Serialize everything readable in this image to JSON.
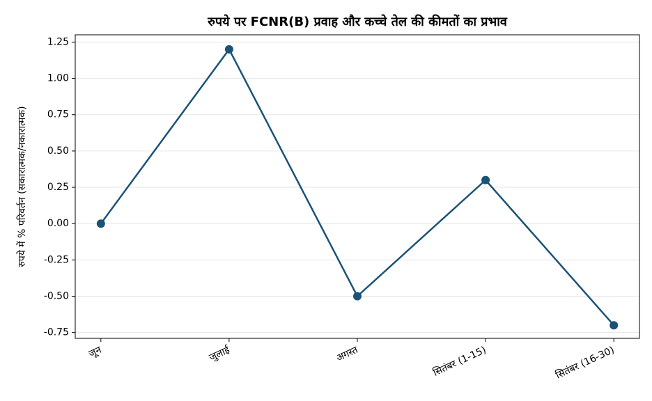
{
  "chart_data": {
    "type": "line",
    "title": "रुपये पर FCNR(B) प्रवाह और कच्चे तेल की कीमतों का प्रभाव",
    "y_label": "रुपये में % परिवर्तन (सकारात्मक/नकारात्मक)",
    "categories": [
      "जून",
      "जुलाई",
      "अगस्त",
      "सितंबर (1-15)",
      "सितंबर (16-30)"
    ],
    "series": [
      {
        "name": "रुपये में % परिवर्तन",
        "color": "#1b5276",
        "values": [
          0,
          1.2,
          -0.5,
          0.3,
          -0.7
        ]
      }
    ],
    "ylim": [
      -0.79,
      1.3
    ],
    "yticks": [
      -0.75,
      {
        "value": -0.5,
        "label": "-0.50"
      },
      -0.25,
      {
        "value": 0,
        "label": "0.00"
      },
      0.25,
      {
        "value": 0.5,
        "label": "0.50"
      },
      0.75,
      {
        "value": 1,
        "label": "1.00"
      },
      1.25
    ],
    "grid": true
  }
}
